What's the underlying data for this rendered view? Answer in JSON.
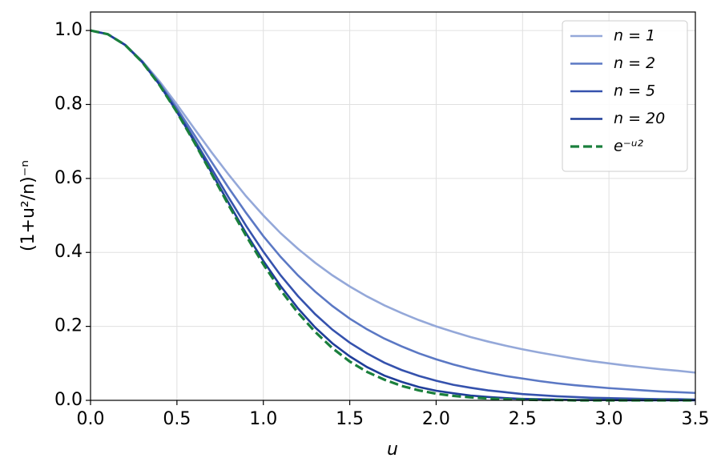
{
  "chart_data": {
    "type": "line",
    "xlabel": "u",
    "ylabel": "(1+u²/n)⁻ⁿ",
    "xlim": [
      0,
      3.5
    ],
    "ylim": [
      0,
      1.05
    ],
    "xticks": [
      {
        "value": 0,
        "label": "0.0"
      },
      {
        "value": 0.5,
        "label": "0.5"
      },
      {
        "value": 1,
        "label": "1.0"
      },
      {
        "value": 1.5,
        "label": "1.5"
      },
      {
        "value": 2,
        "label": "2.0"
      },
      {
        "value": 2.5,
        "label": "2.5"
      },
      {
        "value": 3,
        "label": "3.0"
      },
      {
        "value": 3.5,
        "label": "3.5"
      }
    ],
    "yticks": [
      {
        "value": 0,
        "label": "0.0"
      },
      {
        "value": 0.2,
        "label": "0.2"
      },
      {
        "value": 0.4,
        "label": "0.4"
      },
      {
        "value": 0.6,
        "label": "0.6"
      },
      {
        "value": 0.8,
        "label": "0.8"
      },
      {
        "value": 1,
        "label": "1.0"
      }
    ],
    "grid": true,
    "legend": "upper right",
    "x": [
      0,
      0.1,
      0.2,
      0.3,
      0.4,
      0.5,
      0.6,
      0.7,
      0.8,
      0.9,
      1.0,
      1.1,
      1.2,
      1.3,
      1.4,
      1.5,
      1.6,
      1.7,
      1.8,
      1.9,
      2.0,
      2.1,
      2.2,
      2.3,
      2.4,
      2.5,
      2.6,
      2.7,
      2.8,
      2.9,
      3.0,
      3.1,
      3.2,
      3.3,
      3.4,
      3.5
    ],
    "series": [
      {
        "name": "n = 1",
        "color": "#94a8d9",
        "dashed": false,
        "values": [
          1,
          0.99,
          0.962,
          0.917,
          0.862,
          0.8,
          0.735,
          0.671,
          0.61,
          0.552,
          0.5,
          0.452,
          0.41,
          0.372,
          0.338,
          0.308,
          0.281,
          0.257,
          0.236,
          0.217,
          0.2,
          0.185,
          0.171,
          0.159,
          0.148,
          0.138,
          0.129,
          0.121,
          0.113,
          0.106,
          0.1,
          0.094,
          0.089,
          0.084,
          0.08,
          0.075
        ]
      },
      {
        "name": "n = 2",
        "color": "#5b78c4",
        "dashed": false,
        "values": [
          1,
          0.99,
          0.961,
          0.916,
          0.857,
          0.79,
          0.718,
          0.645,
          0.574,
          0.507,
          0.444,
          0.388,
          0.338,
          0.294,
          0.255,
          0.221,
          0.192,
          0.167,
          0.146,
          0.127,
          0.111,
          0.097,
          0.085,
          0.075,
          0.066,
          0.059,
          0.052,
          0.046,
          0.041,
          0.037,
          0.033,
          0.03,
          0.027,
          0.024,
          0.022,
          0.02
        ]
      },
      {
        "name": "n = 5",
        "color": "#3552ad",
        "dashed": false,
        "values": [
          1,
          0.99,
          0.961,
          0.915,
          0.854,
          0.783,
          0.706,
          0.627,
          0.548,
          0.472,
          0.402,
          0.338,
          0.282,
          0.233,
          0.191,
          0.156,
          0.127,
          0.102,
          0.082,
          0.066,
          0.053,
          0.042,
          0.034,
          0.027,
          0.022,
          0.017,
          0.014,
          0.011,
          0.009,
          0.007,
          0.006,
          0.005,
          0.004,
          0.003,
          0.003,
          0.002
        ]
      },
      {
        "name": "n = 20",
        "color": "#1f3d99",
        "dashed": false,
        "values": [
          1,
          0.99,
          0.961,
          0.914,
          0.853,
          0.78,
          0.7,
          0.616,
          0.533,
          0.452,
          0.377,
          0.309,
          0.249,
          0.197,
          0.154,
          0.119,
          0.09,
          0.067,
          0.05,
          0.036,
          0.026,
          0.019,
          0.013,
          0.009,
          0.006,
          0.004,
          0.003,
          0.002,
          0.001,
          0.001,
          0.001,
          0,
          0,
          0,
          0,
          0
        ]
      },
      {
        "name": "e⁻ᵘ²",
        "color": "#1a7f3c",
        "dashed": true,
        "values": [
          1,
          0.99,
          0.961,
          0.914,
          0.852,
          0.779,
          0.698,
          0.613,
          0.527,
          0.445,
          0.368,
          0.298,
          0.237,
          0.185,
          0.141,
          0.105,
          0.077,
          0.056,
          0.039,
          0.027,
          0.018,
          0.012,
          0.008,
          0.005,
          0.003,
          0.002,
          0.001,
          0.001,
          0,
          0,
          0,
          0,
          0,
          0,
          0,
          0
        ]
      }
    ]
  }
}
